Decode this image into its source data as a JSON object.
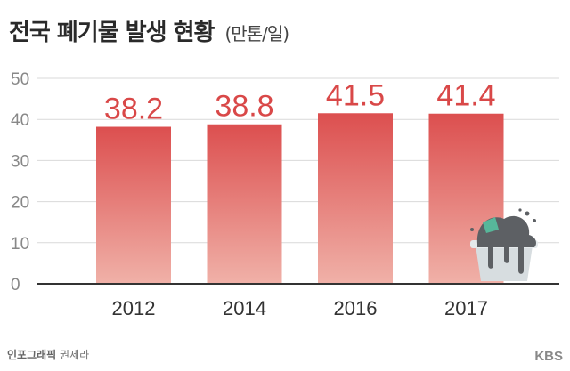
{
  "header": {
    "title": "전국 폐기물 발생 현황",
    "unit": "(만톤/일)"
  },
  "footer": {
    "credit_brand": "인포그래픽",
    "credit_name": "권세라",
    "logo_text": "KBS"
  },
  "colors": {
    "bar_top": "#dc4f4f",
    "bar_bottom": "#f0b1a8",
    "value_label": "#d94848",
    "gridline": "#d9d9d9",
    "axis": "#333333",
    "tick_text": "#888888"
  },
  "chart_data": {
    "type": "bar",
    "categories": [
      "2012",
      "2014",
      "2016",
      "2017"
    ],
    "values": [
      38.2,
      38.8,
      41.5,
      41.4
    ],
    "data_labels": [
      "38.2",
      "38.8",
      "41.5",
      "41.4"
    ],
    "title": "전국 폐기물 발생 현황",
    "unit": "(만톤/일)",
    "xlabel": "",
    "ylabel": "",
    "ylim": [
      0,
      50
    ],
    "yticks": [
      0,
      10,
      20,
      30,
      40,
      50
    ],
    "grid": true,
    "legend": "none",
    "decoration": "garbage-bin-icon"
  }
}
